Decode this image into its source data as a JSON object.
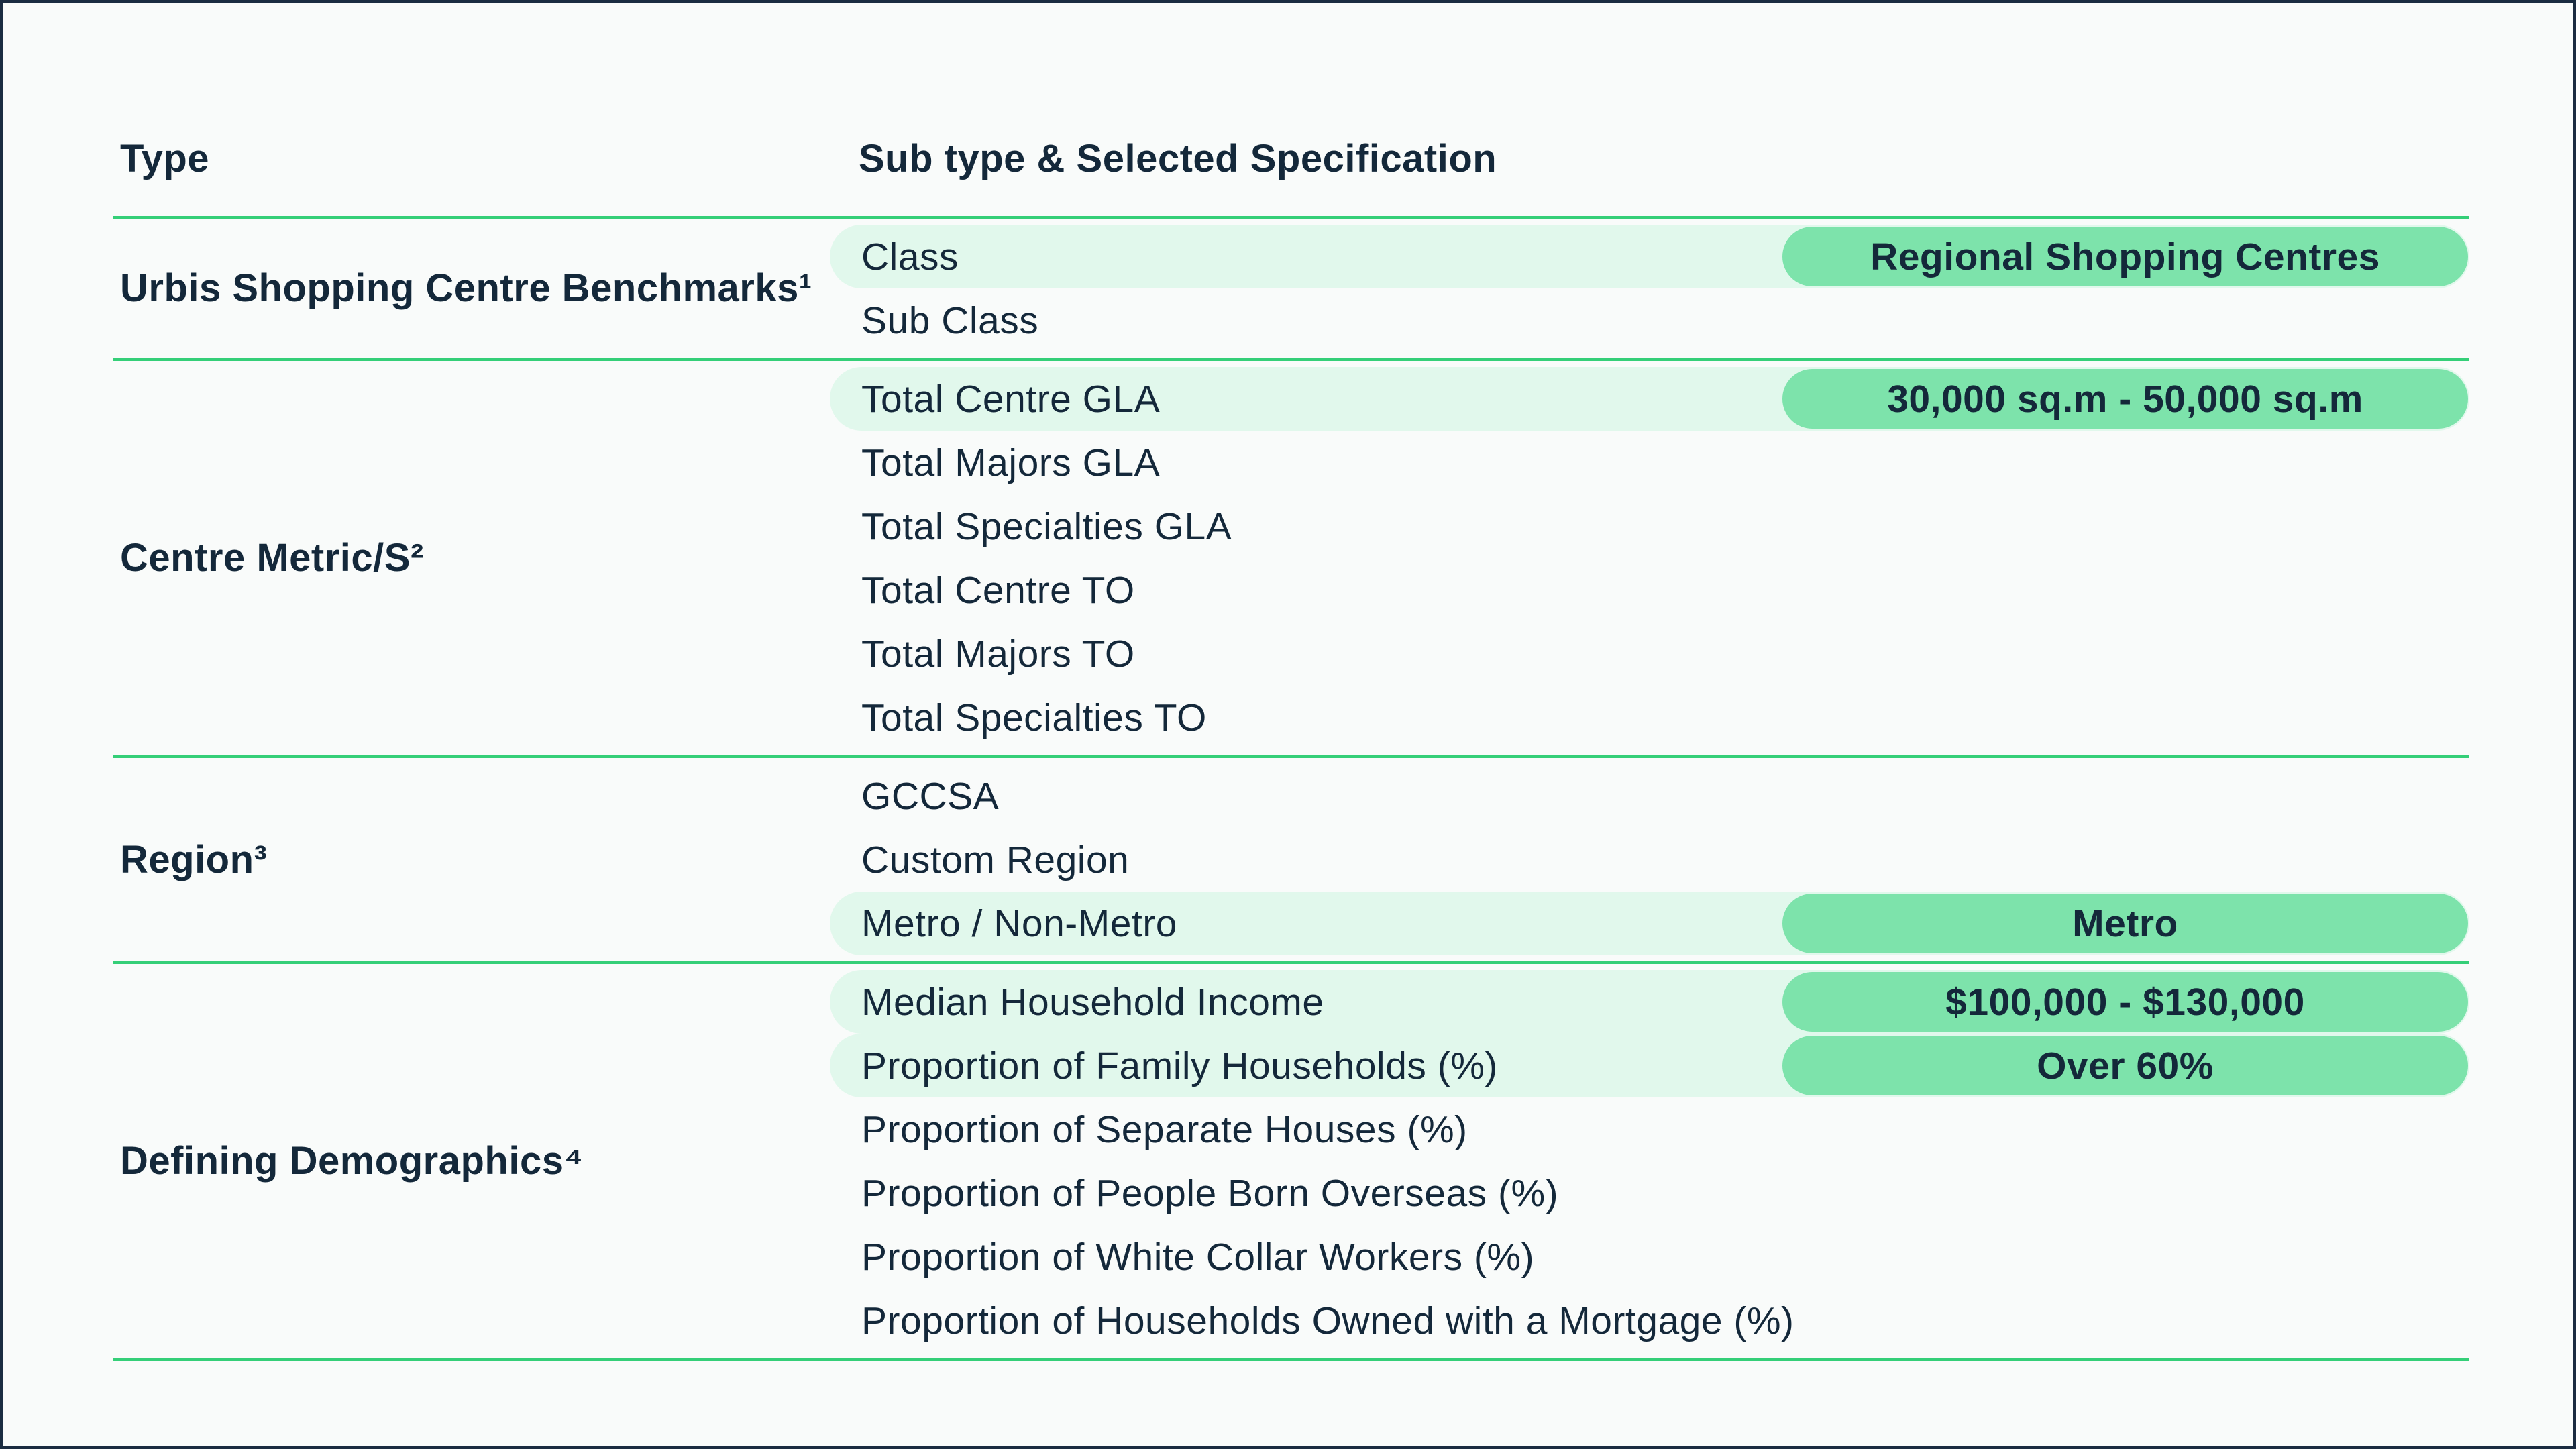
{
  "table": {
    "columns": {
      "type": "Type",
      "subtype": "Sub type & Selected Specification"
    },
    "sections": [
      {
        "label": "Urbis Shopping Centre Benchmarks¹",
        "rows": [
          {
            "name": "Class",
            "highlighted": true,
            "value": "Regional Shopping Centres"
          },
          {
            "name": "Sub Class",
            "highlighted": false
          }
        ]
      },
      {
        "label": "Centre Metric/S²",
        "rows": [
          {
            "name": "Total Centre GLA",
            "highlighted": true,
            "value": "30,000 sq.m - 50,000 sq.m"
          },
          {
            "name": "Total Majors GLA",
            "highlighted": false
          },
          {
            "name": "Total Specialties GLA",
            "highlighted": false
          },
          {
            "name": "Total Centre TO",
            "highlighted": false
          },
          {
            "name": "Total Majors TO",
            "highlighted": false
          },
          {
            "name": "Total Specialties TO",
            "highlighted": false
          }
        ]
      },
      {
        "label": "Region³",
        "rows": [
          {
            "name": "GCCSA",
            "highlighted": false
          },
          {
            "name": "Custom Region",
            "highlighted": false
          },
          {
            "name": "Metro / Non-Metro",
            "highlighted": true,
            "value": "Metro"
          }
        ]
      },
      {
        "label": "Defining Demographics⁴",
        "rows": [
          {
            "name": "Median Household Income",
            "highlighted": true,
            "value": "$100,000 - $130,000"
          },
          {
            "name": "Proportion of Family Households (%)",
            "highlighted": true,
            "value": "Over 60%"
          },
          {
            "name": "Proportion of Separate Houses (%)",
            "highlighted": false
          },
          {
            "name": "Proportion of People Born Overseas (%)",
            "highlighted": false
          },
          {
            "name": "Proportion of White Collar Workers (%)",
            "highlighted": false
          },
          {
            "name": "Proportion of Households Owned with a Mortgage (%)",
            "highlighted": false
          }
        ]
      }
    ],
    "colors": {
      "accent_green": "#7de3ab",
      "highlight_green": "#e1f8ec",
      "rule_green": "#35cf78",
      "text_navy": "#14283a",
      "border_navy": "#1b2c41"
    }
  }
}
